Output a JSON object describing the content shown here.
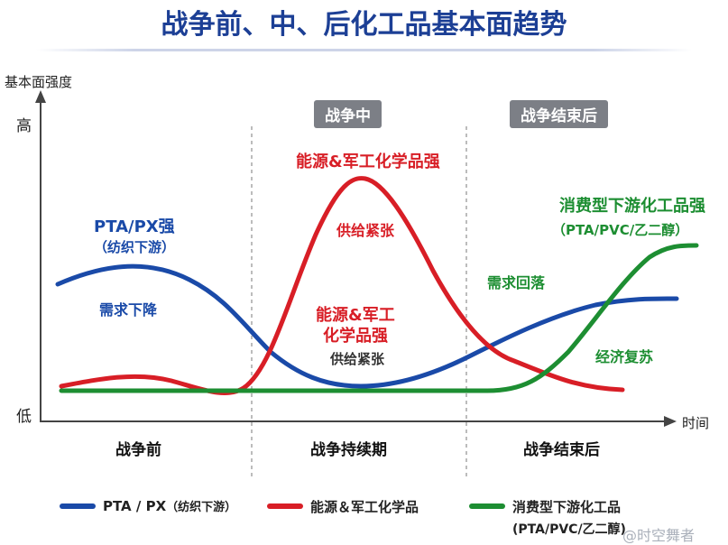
{
  "title": "战争前、中、后化工品基本面趋势",
  "axes": {
    "y_label": "基本面强度",
    "y_high": "高",
    "y_low": "低",
    "x_label": "时间"
  },
  "phase_headers": {
    "during": "战争中",
    "after": "战争结束后"
  },
  "phases": {
    "before": "战争前",
    "during": "战争持续期",
    "after": "战争结束后"
  },
  "annotations": {
    "pta_title": "PTA/PX强",
    "pta_sub": "（纺织下游）",
    "demand_drop": "需求下降",
    "energy_strong": "能源&军工化学品强",
    "supply_tight": "供给紧张",
    "energy_strong2_l1": "能源&军工",
    "energy_strong2_l2": "化学品强",
    "supply_tight2": "供给紧张",
    "demand_fall": "需求回落",
    "consumer_strong": "消费型下游化工品强",
    "consumer_sub": "（PTA/PVC/乙二醇）",
    "recovery": "经济复苏"
  },
  "legend": [
    {
      "label": "PTA / PX",
      "sub": "（纺织下游）",
      "color": "#1a4aa8"
    },
    {
      "label": "能源＆军工化学品",
      "sub": "",
      "color": "#d81e26"
    },
    {
      "label": "消费型下游化工品",
      "sub": "(PTA/PVC/乙二醇)",
      "color": "#1d8e32"
    }
  ],
  "watermark": "@时空舞者",
  "colors": {
    "blue": "#1a4aa8",
    "red": "#d81e26",
    "green": "#1d8e32",
    "title": "#1c3f95"
  }
}
